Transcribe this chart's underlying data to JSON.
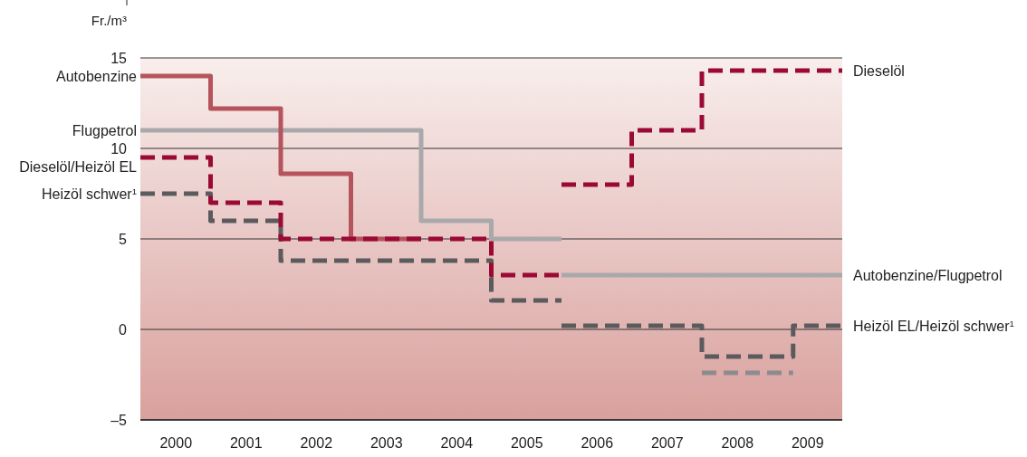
{
  "chart_data": {
    "type": "step",
    "ylabel": "Fr./m³",
    "xlim": [
      2000,
      2010
    ],
    "xticks": [
      {
        "value": 2000.5,
        "label": "2000"
      },
      {
        "value": 2001.5,
        "label": "2001"
      },
      {
        "value": 2002.5,
        "label": "2002"
      },
      {
        "value": 2003.5,
        "label": "2003"
      },
      {
        "value": 2004.5,
        "label": "2004"
      },
      {
        "value": 2005.5,
        "label": "2005"
      },
      {
        "value": 2006.5,
        "label": "2006"
      },
      {
        "value": 2007.5,
        "label": "2007"
      },
      {
        "value": 2008.5,
        "label": "2008"
      },
      {
        "value": 2009.5,
        "label": "2009"
      }
    ],
    "ylim": [
      -5,
      15
    ],
    "yticks": [
      {
        "value": -5,
        "label": "–5"
      },
      0,
      5,
      10,
      15
    ],
    "grid": "y",
    "series": [
      {
        "name": "Flugpetrol",
        "color": "#a9a9ab",
        "line_style": "solid",
        "x": [
          2000,
          2004,
          2005,
          2006
        ],
        "values": [
          11,
          6,
          5,
          5
        ]
      },
      {
        "name": "Autobenzine",
        "color": "#b5545c",
        "line_style": "solid",
        "x": [
          2000,
          2001,
          2002,
          2003,
          2004
        ],
        "values": [
          14,
          12.2,
          8.6,
          5,
          5
        ]
      },
      {
        "name": "Autobenzine/Flugpetrol",
        "color": "#a9a9ab",
        "line_style": "solid",
        "x": [
          2006,
          2010
        ],
        "values": [
          3,
          3
        ]
      },
      {
        "color": "#8c8c8e",
        "line_style": "dashed",
        "x": [
          2008,
          2009.3
        ],
        "values": [
          -2.4,
          -2.4
        ]
      },
      {
        "name": "Heizöl schwer$^{1}$",
        "color": "#5b5b5d",
        "line_style": "dashed",
        "x": [
          2000,
          2001,
          2002,
          2005,
          2006
        ],
        "values": [
          7.5,
          6,
          3.8,
          1.6,
          1.6
        ]
      },
      {
        "name": "Heizöl EL/Heizöl schwer$^{1}$",
        "color": "#5b5b5d",
        "line_style": "dashed",
        "x": [
          2006,
          2008,
          2009.3,
          2010
        ],
        "values": [
          0.2,
          -1.5,
          0.2,
          0.2
        ]
      },
      {
        "name": "Dieselöl/Heizöl EL",
        "color": "#9b0a35",
        "line_style": "dashed",
        "x": [
          2000,
          2001,
          2002,
          2005,
          2006
        ],
        "values": [
          9.5,
          7,
          5,
          3,
          3
        ]
      },
      {
        "name": "Dieselöl",
        "color": "#9b0a35",
        "line_style": "dashed",
        "x": [
          2006,
          2007,
          2008,
          2010
        ],
        "values": [
          8,
          11,
          14.3,
          14.3
        ]
      }
    ]
  }
}
